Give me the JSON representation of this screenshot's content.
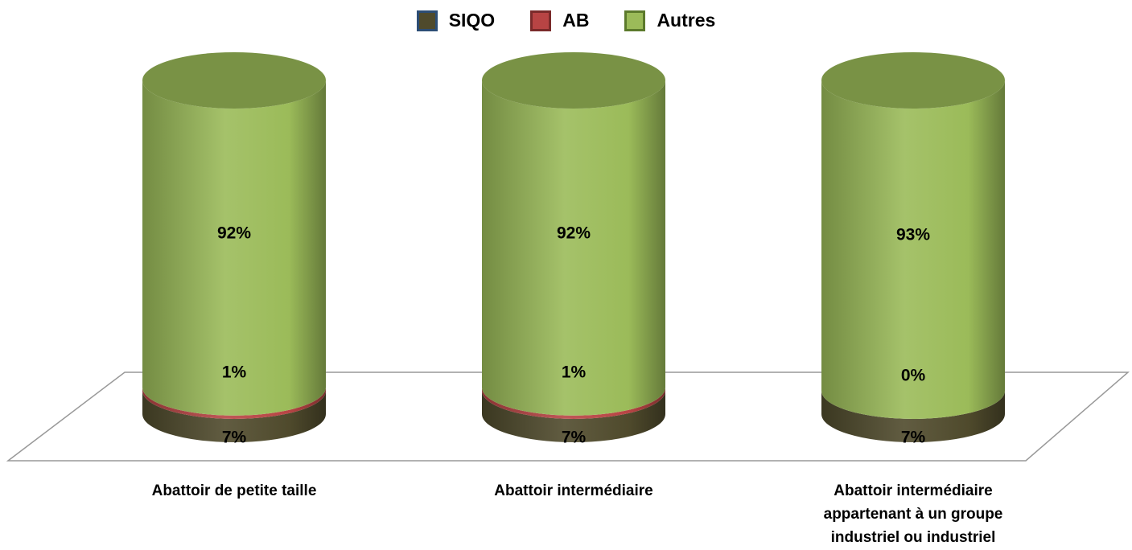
{
  "chart_data": {
    "type": "bar",
    "stacked": true,
    "categories": [
      "Abattoir de petite taille",
      "Abattoir intermédiaire",
      "Abattoir intermédiaire appartenant à un groupe industriel ou industriel"
    ],
    "ylim": [
      0,
      100
    ],
    "series": [
      {
        "name": "SIQO",
        "color": "#4f4a2c",
        "values": [
          7,
          7,
          7
        ],
        "value_labels": [
          "7%",
          "7%",
          "7%"
        ]
      },
      {
        "name": "AB",
        "color": "#b84444",
        "values": [
          1,
          1,
          0
        ],
        "value_labels": [
          "1%",
          "1%",
          "0%"
        ]
      },
      {
        "name": "Autres",
        "color": "#9bbb59",
        "values": [
          92,
          92,
          93
        ],
        "value_labels": [
          "92%",
          "92%",
          "93%"
        ]
      }
    ],
    "legend": "top"
  }
}
